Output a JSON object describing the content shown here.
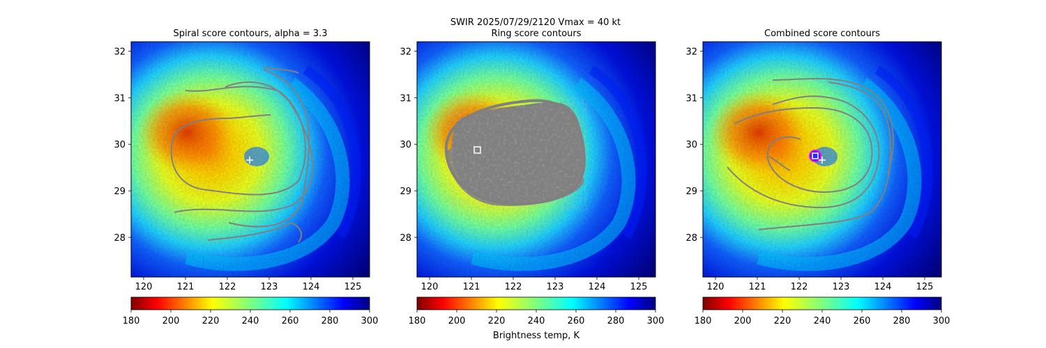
{
  "figure": {
    "suptitle_line1": "SWIR  2025/07/29/2120    Vmax = 40 kt",
    "colorbar_label": "Brightness temp, K"
  },
  "colors": {
    "contour": "#808080",
    "marker": "#ffffff",
    "combined_circle": "#ff00ff"
  },
  "chart_data": [
    {
      "type": "heatmap",
      "title": "Spiral score contours, alpha =  3.3",
      "xlim": [
        119.7,
        125.4
      ],
      "ylim": [
        27.15,
        32.2
      ],
      "xticks": [
        120,
        121,
        122,
        123,
        124,
        125
      ],
      "yticks": [
        28,
        29,
        30,
        31,
        32
      ],
      "colormap": "jet_r",
      "clim": [
        180,
        300
      ],
      "colorbar_ticks": [
        180,
        200,
        220,
        240,
        260,
        280,
        300
      ],
      "markers": [
        {
          "symbol": "+",
          "lon": 122.55,
          "lat": 29.65
        }
      ],
      "contour_color": "gray"
    },
    {
      "type": "heatmap",
      "title": "Ring score contours",
      "xlim": [
        119.7,
        125.4
      ],
      "ylim": [
        27.15,
        32.2
      ],
      "xticks": [
        120,
        121,
        122,
        123,
        124,
        125
      ],
      "yticks": [
        28,
        29,
        30,
        31,
        32
      ],
      "colormap": "jet_r",
      "clim": [
        180,
        300
      ],
      "colorbar_ticks": [
        180,
        200,
        220,
        240,
        260,
        280,
        300
      ],
      "markers": [
        {
          "symbol": "square",
          "lon": 121.15,
          "lat": 29.85
        }
      ],
      "contour_color": "gray"
    },
    {
      "type": "heatmap",
      "title": "Combined score contours",
      "xlim": [
        119.7,
        125.4
      ],
      "ylim": [
        27.15,
        32.2
      ],
      "xticks": [
        120,
        121,
        122,
        123,
        124,
        125
      ],
      "yticks": [
        28,
        29,
        30,
        31,
        32
      ],
      "colormap": "jet_r",
      "clim": [
        180,
        300
      ],
      "colorbar_ticks": [
        180,
        200,
        220,
        240,
        260,
        280,
        300
      ],
      "markers": [
        {
          "symbol": "square",
          "lon": 122.35,
          "lat": 29.75
        },
        {
          "symbol": "circle",
          "lon": 122.35,
          "lat": 29.75
        },
        {
          "symbol": "+",
          "lon": 122.55,
          "lat": 29.65
        }
      ],
      "contour_color": "gray"
    }
  ]
}
